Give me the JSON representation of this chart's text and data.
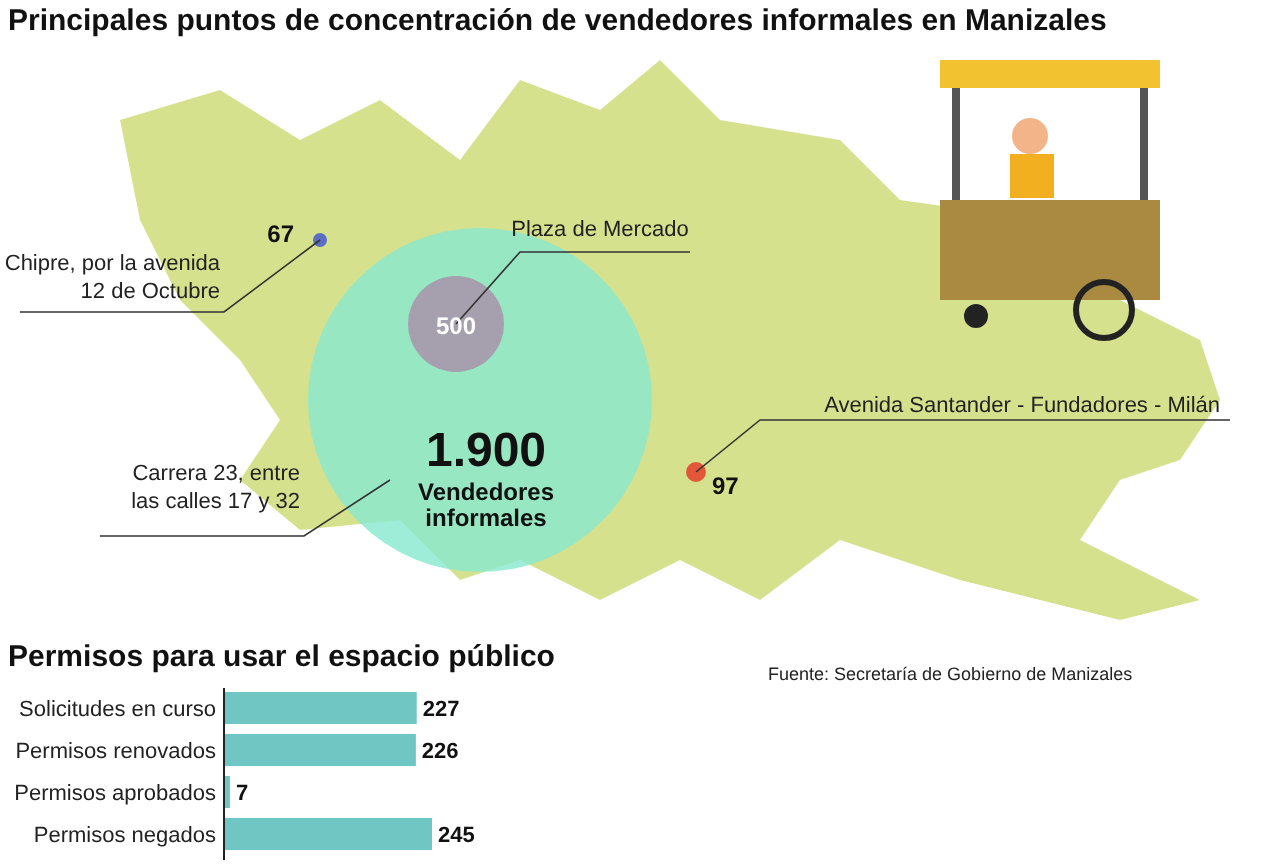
{
  "chart_data": [
    {
      "type": "other",
      "title": "Principales puntos de concentración de vendedores informales en Manizales",
      "categories": [
        "Chipre, por la avenida 12 de Octubre",
        "Plaza de Mercado",
        "Carrera 23, entre las calles 17 y 32",
        "Avenida Santander - Fundadores - Milán"
      ],
      "values": [
        67,
        500,
        1900,
        97
      ],
      "value_labels": [
        "67",
        "500",
        "1.900",
        "97"
      ],
      "colors": [
        "#5b6ec2",
        "#a59fae",
        "#86e8d0",
        "#e2573a"
      ],
      "annotations": [
        "Vendedores informales",
        "Fuente: Secretaría de Gobierno de Manizales"
      ]
    },
    {
      "type": "bar",
      "orientation": "horizontal",
      "title": "Permisos para usar el espacio público",
      "categories": [
        "Solicitudes en curso",
        "Permisos renovados",
        "Permisos aprobados",
        "Permisos negados"
      ],
      "values": [
        227,
        226,
        7,
        245
      ],
      "color": "#6fc6c2",
      "data_labels": true
    }
  ]
}
